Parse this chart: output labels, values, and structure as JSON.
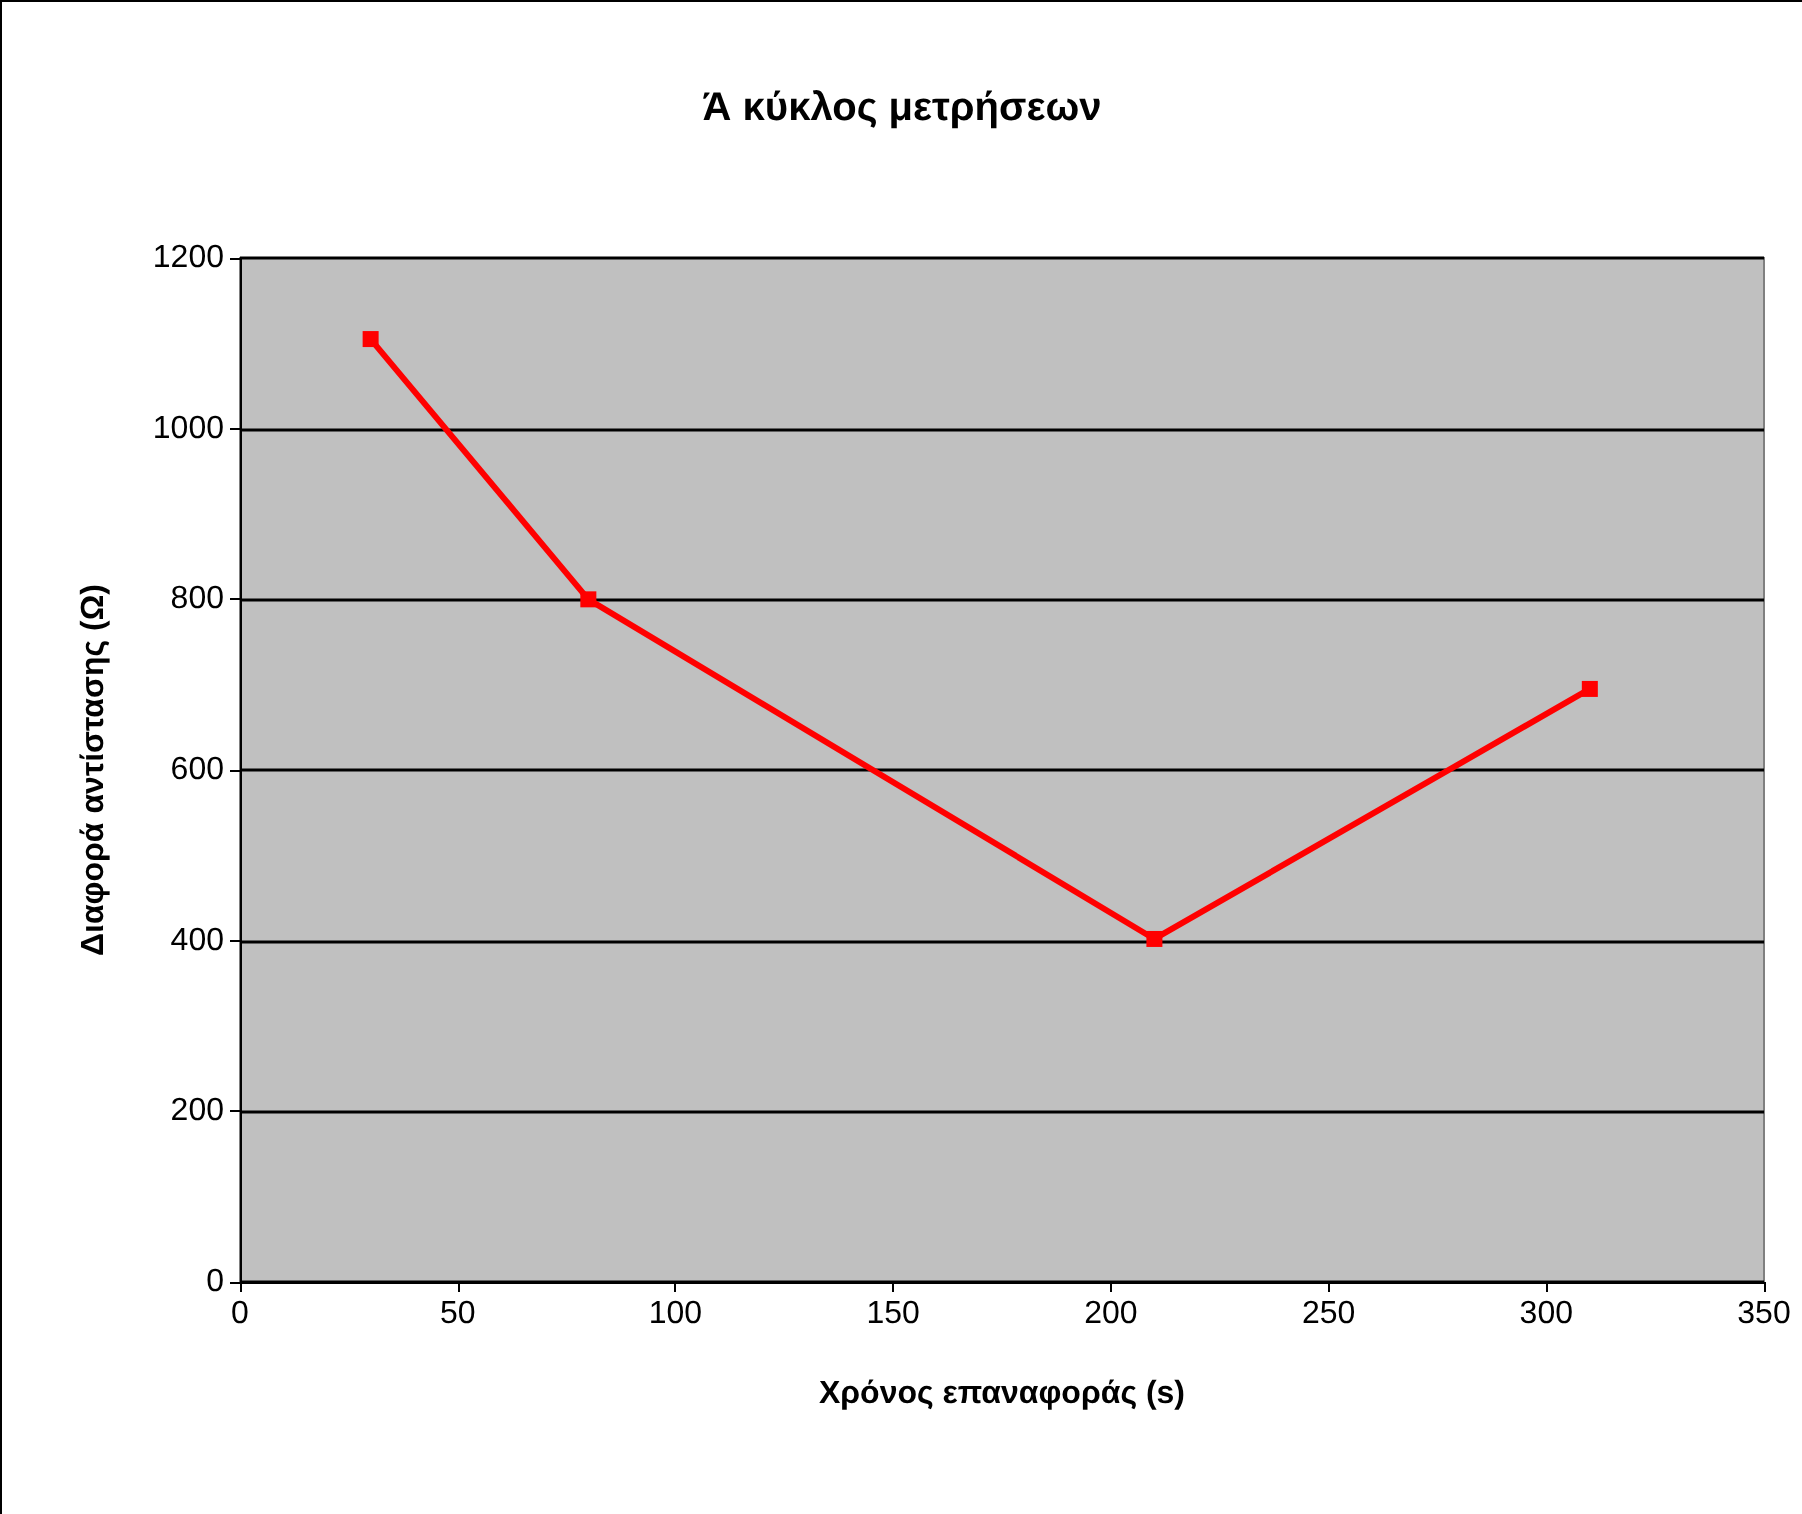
{
  "chart_data": {
    "type": "line",
    "title": "Ά κύκλος μετρήσεων",
    "xlabel": "Χρόνος επαναφοράς (s)",
    "ylabel": "Διαφορά αντίστασης (Ω)",
    "x": [
      30,
      80,
      210,
      310
    ],
    "series": [
      {
        "color": "#ff0000",
        "values": [
          1105,
          800,
          402,
          695
        ]
      }
    ],
    "xlim": [
      0,
      350
    ],
    "xticks": [
      0,
      50,
      100,
      150,
      200,
      250,
      300,
      350
    ],
    "ylim": [
      0,
      1200
    ],
    "yticks": [
      0,
      200,
      400,
      600,
      800,
      1000,
      1200
    ],
    "grid": "y",
    "marker": "square",
    "line_style": "solid"
  }
}
